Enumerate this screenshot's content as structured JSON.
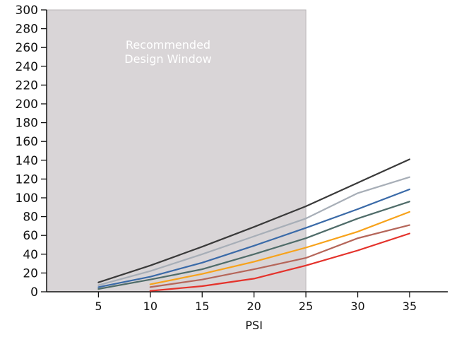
{
  "chart_data": {
    "type": "line",
    "title": "",
    "xlabel": "PSI",
    "ylabel": "",
    "xlim": [
      0,
      38
    ],
    "ylim": [
      0,
      300
    ],
    "x_ticks": [
      5,
      10,
      15,
      20,
      25,
      30,
      35
    ],
    "y_ticks": [
      0,
      20,
      40,
      60,
      80,
      100,
      120,
      140,
      160,
      180,
      200,
      220,
      240,
      260,
      280,
      300
    ],
    "grid": false,
    "legend": "none",
    "shaded_region": {
      "label_line1": "Recommended",
      "label_line2": "Design Window",
      "x_range": [
        0,
        25
      ],
      "y_range": [
        0,
        300
      ],
      "color": "#d9d5d7"
    },
    "series": [
      {
        "color": "#3a3a3a",
        "x": [
          5,
          10,
          15,
          20,
          25,
          30,
          35
        ],
        "y": [
          10,
          28,
          48,
          69,
          91,
          116,
          141
        ]
      },
      {
        "color": "#a7aeb7",
        "x": [
          5,
          10,
          15,
          20,
          25,
          30,
          35
        ],
        "y": [
          7,
          22,
          40,
          59,
          78,
          105,
          122
        ]
      },
      {
        "color": "#3a6aa8",
        "x": [
          5,
          10,
          15,
          20,
          25,
          30,
          35
        ],
        "y": [
          5,
          16,
          31,
          49,
          68,
          88,
          109
        ]
      },
      {
        "color": "#4f6c69",
        "x": [
          5,
          10,
          15,
          20,
          25,
          30,
          35
        ],
        "y": [
          3,
          13,
          24,
          40,
          57,
          78,
          96
        ]
      },
      {
        "color": "#f7a21a",
        "x": [
          10,
          15,
          20,
          25,
          30,
          35
        ],
        "y": [
          8,
          19,
          32,
          47,
          64,
          85
        ]
      },
      {
        "color": "#b5665a",
        "x": [
          10,
          15,
          20,
          25,
          30,
          35
        ],
        "y": [
          5,
          13,
          24,
          36,
          57,
          71
        ]
      },
      {
        "color": "#e4322b",
        "x": [
          10,
          15,
          20,
          25,
          30,
          35
        ],
        "y": [
          1,
          6,
          14,
          28,
          44,
          62
        ]
      }
    ]
  }
}
